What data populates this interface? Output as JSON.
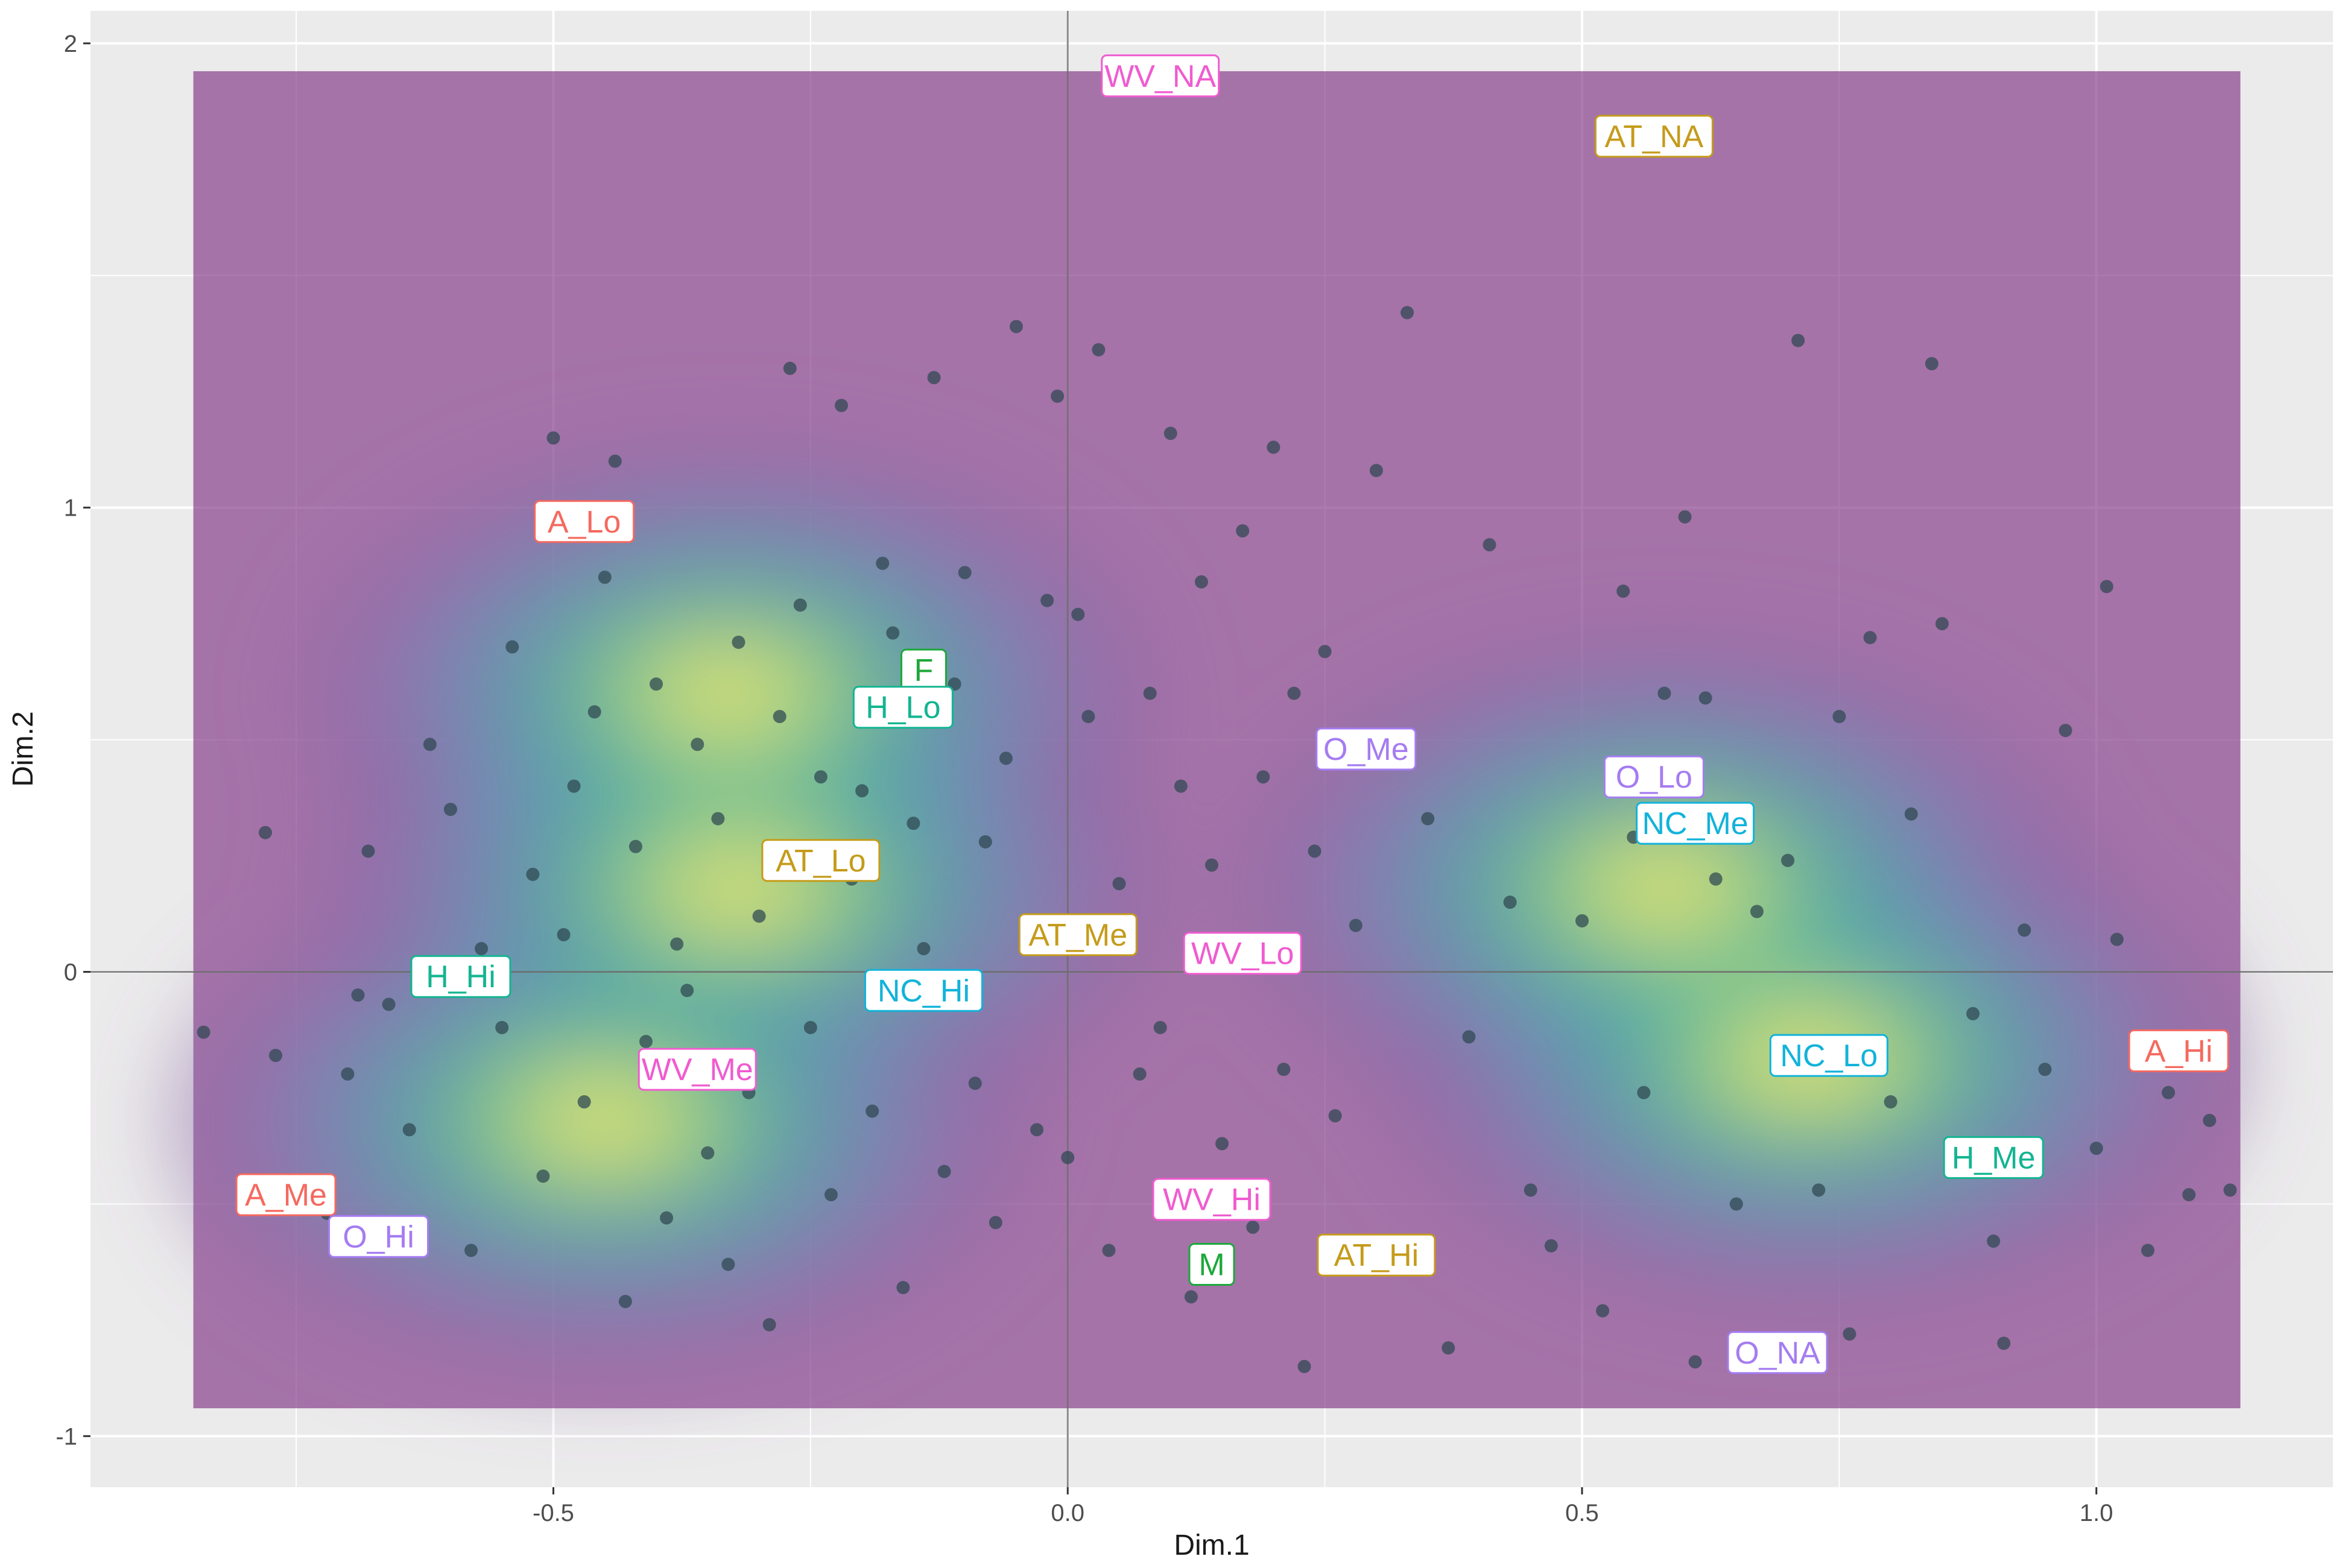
{
  "chart_data": {
    "type": "scatter",
    "xlabel": "Dim.1",
    "ylabel": "Dim.2",
    "xlim": [
      -0.95,
      1.23
    ],
    "ylim": [
      -1.11,
      2.07
    ],
    "x_ticks": [
      -0.5,
      0.0,
      0.5,
      1.0
    ],
    "x_tick_labels": [
      "-0.5",
      "0.0",
      "0.5",
      "1.0"
    ],
    "y_ticks": [
      -1,
      0,
      1,
      2
    ],
    "y_tick_labels": [
      "-1",
      "0",
      "1",
      "2"
    ],
    "grid": true,
    "reference_lines": [
      {
        "axis": "x",
        "value": 0
      },
      {
        "axis": "y",
        "value": 0
      }
    ],
    "density_fill": {
      "low_color": "#7b2a7f",
      "high_color": "#f6e56b",
      "x_range": [
        -0.85,
        1.14
      ],
      "y_range": [
        -0.94,
        1.94
      ],
      "peaks": [
        {
          "x": -0.32,
          "y": 0.18
        },
        {
          "x": -0.45,
          "y": -0.32
        },
        {
          "x": 0.72,
          "y": -0.19
        },
        {
          "x": -0.33,
          "y": 0.6
        },
        {
          "x": 0.58,
          "y": 0.18
        }
      ]
    },
    "points": [
      {
        "x": -0.84,
        "y": -0.13
      },
      {
        "x": -0.78,
        "y": 0.3
      },
      {
        "x": -0.77,
        "y": -0.18
      },
      {
        "x": -0.72,
        "y": -0.52
      },
      {
        "x": -0.7,
        "y": -0.22
      },
      {
        "x": -0.69,
        "y": -0.05
      },
      {
        "x": -0.68,
        "y": 0.26
      },
      {
        "x": -0.66,
        "y": -0.07
      },
      {
        "x": -0.64,
        "y": -0.34
      },
      {
        "x": -0.62,
        "y": 0.49
      },
      {
        "x": -0.6,
        "y": 0.35
      },
      {
        "x": -0.58,
        "y": -0.6
      },
      {
        "x": -0.57,
        "y": 0.05
      },
      {
        "x": -0.55,
        "y": -0.12
      },
      {
        "x": -0.54,
        "y": 0.7
      },
      {
        "x": -0.52,
        "y": 0.21
      },
      {
        "x": -0.51,
        "y": -0.44
      },
      {
        "x": -0.5,
        "y": 1.15
      },
      {
        "x": -0.49,
        "y": 0.08
      },
      {
        "x": -0.48,
        "y": 0.4
      },
      {
        "x": -0.47,
        "y": -0.28
      },
      {
        "x": -0.46,
        "y": 0.56
      },
      {
        "x": -0.45,
        "y": 0.85
      },
      {
        "x": -0.44,
        "y": 1.1
      },
      {
        "x": -0.43,
        "y": -0.71
      },
      {
        "x": -0.42,
        "y": 0.27
      },
      {
        "x": -0.41,
        "y": -0.15
      },
      {
        "x": -0.4,
        "y": 0.62
      },
      {
        "x": -0.39,
        "y": -0.53
      },
      {
        "x": -0.38,
        "y": 0.06
      },
      {
        "x": -0.37,
        "y": -0.04
      },
      {
        "x": -0.36,
        "y": 0.49
      },
      {
        "x": -0.35,
        "y": -0.39
      },
      {
        "x": -0.34,
        "y": 0.33
      },
      {
        "x": -0.33,
        "y": -0.63
      },
      {
        "x": -0.32,
        "y": 0.71
      },
      {
        "x": -0.31,
        "y": -0.26
      },
      {
        "x": -0.3,
        "y": 0.12
      },
      {
        "x": -0.29,
        "y": -0.76
      },
      {
        "x": -0.28,
        "y": 0.55
      },
      {
        "x": -0.27,
        "y": 1.3
      },
      {
        "x": -0.26,
        "y": 0.79
      },
      {
        "x": -0.25,
        "y": -0.12
      },
      {
        "x": -0.24,
        "y": 0.42
      },
      {
        "x": -0.23,
        "y": -0.48
      },
      {
        "x": -0.22,
        "y": 1.22
      },
      {
        "x": -0.21,
        "y": 0.2
      },
      {
        "x": -0.2,
        "y": 0.39
      },
      {
        "x": -0.19,
        "y": -0.3
      },
      {
        "x": -0.18,
        "y": 0.88
      },
      {
        "x": -0.17,
        "y": 0.73
      },
      {
        "x": -0.16,
        "y": -0.68
      },
      {
        "x": -0.15,
        "y": 0.32
      },
      {
        "x": -0.14,
        "y": 0.05
      },
      {
        "x": -0.13,
        "y": 1.28
      },
      {
        "x": -0.12,
        "y": -0.43
      },
      {
        "x": -0.11,
        "y": 0.62
      },
      {
        "x": -0.1,
        "y": 0.86
      },
      {
        "x": -0.09,
        "y": -0.24
      },
      {
        "x": -0.08,
        "y": 0.28
      },
      {
        "x": -0.07,
        "y": -0.54
      },
      {
        "x": -0.06,
        "y": 0.46
      },
      {
        "x": -0.05,
        "y": 1.39
      },
      {
        "x": -0.04,
        "y": 0.11
      },
      {
        "x": -0.03,
        "y": -0.34
      },
      {
        "x": -0.02,
        "y": 0.8
      },
      {
        "x": -0.01,
        "y": 1.24
      },
      {
        "x": 0.0,
        "y": -0.4
      },
      {
        "x": 0.01,
        "y": 0.77
      },
      {
        "x": 0.02,
        "y": 0.55
      },
      {
        "x": 0.03,
        "y": 1.34
      },
      {
        "x": 0.04,
        "y": -0.6
      },
      {
        "x": 0.05,
        "y": 0.19
      },
      {
        "x": 0.06,
        "y": 0.07
      },
      {
        "x": 0.07,
        "y": -0.22
      },
      {
        "x": 0.08,
        "y": 0.6
      },
      {
        "x": 0.09,
        "y": -0.12
      },
      {
        "x": 0.1,
        "y": 1.16
      },
      {
        "x": 0.11,
        "y": 0.4
      },
      {
        "x": 0.12,
        "y": -0.7
      },
      {
        "x": 0.13,
        "y": 0.84
      },
      {
        "x": 0.14,
        "y": 0.23
      },
      {
        "x": 0.15,
        "y": -0.37
      },
      {
        "x": 0.16,
        "y": 0.05
      },
      {
        "x": 0.17,
        "y": 0.95
      },
      {
        "x": 0.18,
        "y": -0.55
      },
      {
        "x": 0.19,
        "y": 0.42
      },
      {
        "x": 0.2,
        "y": 1.13
      },
      {
        "x": 0.21,
        "y": -0.21
      },
      {
        "x": 0.22,
        "y": 0.6
      },
      {
        "x": 0.23,
        "y": -0.85
      },
      {
        "x": 0.24,
        "y": 0.26
      },
      {
        "x": 0.25,
        "y": 0.69
      },
      {
        "x": 0.26,
        "y": -0.31
      },
      {
        "x": 0.28,
        "y": 0.1
      },
      {
        "x": 0.3,
        "y": 1.08
      },
      {
        "x": 0.32,
        "y": -0.6
      },
      {
        "x": 0.33,
        "y": 1.42
      },
      {
        "x": 0.35,
        "y": 0.33
      },
      {
        "x": 0.37,
        "y": -0.81
      },
      {
        "x": 0.39,
        "y": -0.14
      },
      {
        "x": 0.41,
        "y": 0.92
      },
      {
        "x": 0.43,
        "y": 0.15
      },
      {
        "x": 0.45,
        "y": -0.47
      },
      {
        "x": 0.47,
        "y": -0.59
      },
      {
        "x": 0.5,
        "y": 0.11
      },
      {
        "x": 0.52,
        "y": -0.73
      },
      {
        "x": 0.54,
        "y": 0.82
      },
      {
        "x": 0.55,
        "y": 0.29
      },
      {
        "x": 0.56,
        "y": -0.26
      },
      {
        "x": 0.58,
        "y": 0.6
      },
      {
        "x": 0.6,
        "y": 0.98
      },
      {
        "x": 0.61,
        "y": -0.84
      },
      {
        "x": 0.62,
        "y": 0.59
      },
      {
        "x": 0.63,
        "y": 0.2
      },
      {
        "x": 0.65,
        "y": -0.5
      },
      {
        "x": 0.67,
        "y": 0.13
      },
      {
        "x": 0.69,
        "y": -0.15
      },
      {
        "x": 0.7,
        "y": 0.24
      },
      {
        "x": 0.71,
        "y": 1.36
      },
      {
        "x": 0.73,
        "y": -0.47
      },
      {
        "x": 0.75,
        "y": 0.55
      },
      {
        "x": 0.76,
        "y": -0.78
      },
      {
        "x": 0.78,
        "y": 0.72
      },
      {
        "x": 0.8,
        "y": -0.28
      },
      {
        "x": 0.82,
        "y": 0.34
      },
      {
        "x": 0.84,
        "y": 1.31
      },
      {
        "x": 0.85,
        "y": 0.75
      },
      {
        "x": 0.86,
        "y": -0.37
      },
      {
        "x": 0.88,
        "y": -0.09
      },
      {
        "x": 0.9,
        "y": -0.58
      },
      {
        "x": 0.91,
        "y": -0.8
      },
      {
        "x": 0.93,
        "y": 0.09
      },
      {
        "x": 0.95,
        "y": -0.21
      },
      {
        "x": 0.97,
        "y": 0.52
      },
      {
        "x": 1.0,
        "y": -0.38
      },
      {
        "x": 1.01,
        "y": 0.83
      },
      {
        "x": 1.02,
        "y": 0.07
      },
      {
        "x": 1.05,
        "y": -0.6
      },
      {
        "x": 1.07,
        "y": -0.26
      },
      {
        "x": 1.09,
        "y": -0.48
      },
      {
        "x": 1.11,
        "y": -0.32
      },
      {
        "x": 1.13,
        "y": -0.47
      }
    ],
    "labels": [
      {
        "text": "WV_NA",
        "x": 0.09,
        "y": 1.93,
        "color": "#f05bd0"
      },
      {
        "text": "AT_NA",
        "x": 0.57,
        "y": 1.8,
        "color": "#c59b1a"
      },
      {
        "text": "A_Lo",
        "x": -0.47,
        "y": 0.97,
        "color": "#f5695f"
      },
      {
        "text": "F",
        "x": -0.14,
        "y": 0.65,
        "color": "#1da83a"
      },
      {
        "text": "H_Lo",
        "x": -0.16,
        "y": 0.57,
        "color": "#13b591"
      },
      {
        "text": "O_Me",
        "x": 0.29,
        "y": 0.48,
        "color": "#a57cf2"
      },
      {
        "text": "O_Lo",
        "x": 0.57,
        "y": 0.42,
        "color": "#a57cf2"
      },
      {
        "text": "NC_Me",
        "x": 0.61,
        "y": 0.32,
        "color": "#12b3da"
      },
      {
        "text": "AT_Lo",
        "x": -0.24,
        "y": 0.24,
        "color": "#c59b1a"
      },
      {
        "text": "AT_Me",
        "x": 0.01,
        "y": 0.08,
        "color": "#c59b1a"
      },
      {
        "text": "WV_Lo",
        "x": 0.17,
        "y": 0.04,
        "color": "#f05bd0"
      },
      {
        "text": "H_Hi",
        "x": -0.59,
        "y": -0.01,
        "color": "#13b591"
      },
      {
        "text": "NC_Hi",
        "x": -0.14,
        "y": -0.04,
        "color": "#12b3da"
      },
      {
        "text": "WV_Me",
        "x": -0.36,
        "y": -0.21,
        "color": "#f05bd0"
      },
      {
        "text": "NC_Lo",
        "x": 0.74,
        "y": -0.18,
        "color": "#12b3da"
      },
      {
        "text": "A_Hi",
        "x": 1.08,
        "y": -0.17,
        "color": "#f5695f"
      },
      {
        "text": "H_Me",
        "x": 0.9,
        "y": -0.4,
        "color": "#13b591"
      },
      {
        "text": "A_Me",
        "x": -0.76,
        "y": -0.48,
        "color": "#f5695f"
      },
      {
        "text": "WV_Hi",
        "x": 0.14,
        "y": -0.49,
        "color": "#f05bd0"
      },
      {
        "text": "O_Hi",
        "x": -0.67,
        "y": -0.57,
        "color": "#a57cf2"
      },
      {
        "text": "M",
        "x": 0.14,
        "y": -0.63,
        "color": "#1da83a"
      },
      {
        "text": "AT_Hi",
        "x": 0.3,
        "y": -0.61,
        "color": "#c59b1a"
      },
      {
        "text": "O_NA",
        "x": 0.69,
        "y": -0.82,
        "color": "#a57cf2"
      }
    ]
  }
}
